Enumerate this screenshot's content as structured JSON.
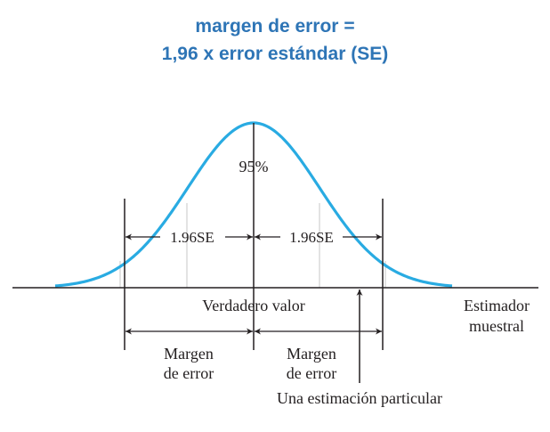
{
  "title": {
    "line1": "margen de error =",
    "line2": "1,96 x error estándar (SE)"
  },
  "diagram": {
    "center_label": "95%",
    "left_se_label": "1.96SE",
    "right_se_label": "1.96SE",
    "true_value_label": "Verdadero valor",
    "estimator_label_line1": "Estimador",
    "estimator_label_line2": "muestral",
    "left_margin_line1": "Margen",
    "left_margin_line2": "de error",
    "right_margin_line1": "Margen",
    "right_margin_line2": "de error",
    "estimate_label": "Una estimación particular",
    "curve_color": "#29abe2",
    "line_color": "#231f20"
  }
}
